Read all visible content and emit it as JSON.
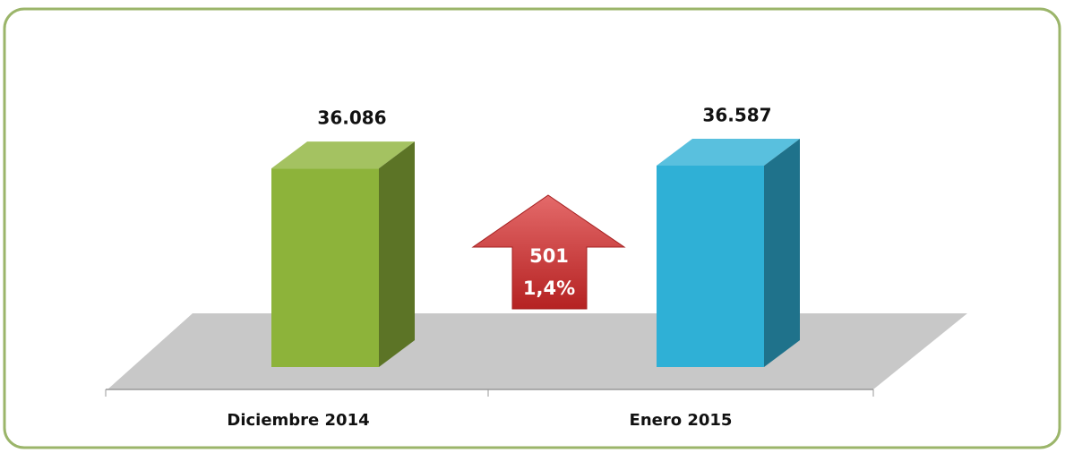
{
  "chart_data": {
    "type": "bar3d",
    "categories": [
      "Diciembre 2014",
      "Enero 2015"
    ],
    "values": [
      36086,
      36587
    ],
    "value_labels": [
      "36.086",
      "36.587"
    ],
    "colors": [
      "#8db33a",
      "#2fb0d6"
    ],
    "annotations": [
      "501",
      "1,4%"
    ]
  }
}
